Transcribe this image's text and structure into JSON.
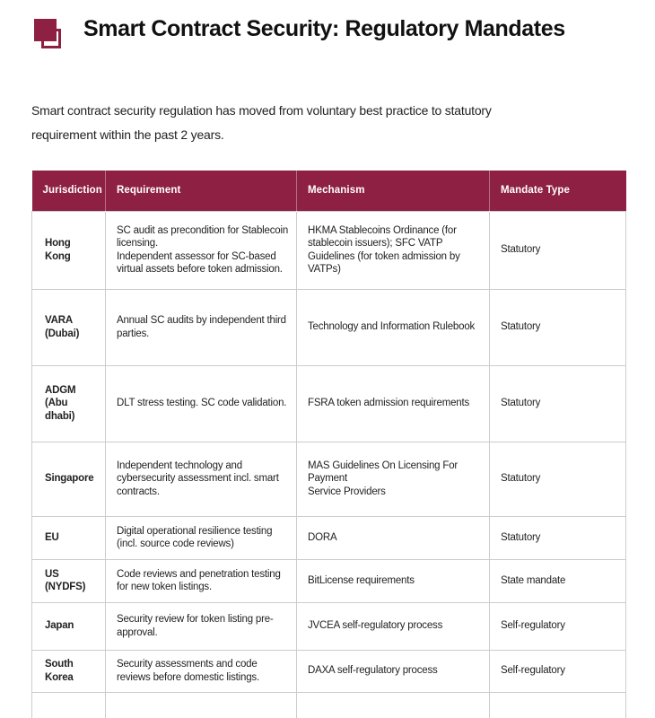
{
  "page": {
    "title": "Smart Contract Security: Regulatory Mandates",
    "intro": "Smart contract security regulation has moved from voluntary best practice to statutory requirement within the past 2 years."
  },
  "logo": {
    "icon": "overlapping-squares-icon",
    "color": "#8e2143"
  },
  "colors": {
    "brand_maroon": "#8e2143",
    "table_border_gray": "#cccccc",
    "header_text": "#ffffff",
    "body_text": "#1f1f1f"
  },
  "table": {
    "headers": [
      "Jurisdiction",
      "Requirement",
      "Mechanism",
      "Mandate Type"
    ],
    "rows": [
      {
        "jurisdiction": "Hong Kong",
        "requirement": "SC audit as precondition for Stablecoin licensing.\nIndependent assessor for SC-based virtual assets before token admission.",
        "mechanism": "HKMA Stablecoins Ordinance (for stablecoin issuers); SFC VATP Guidelines (for token admission by VATPs)",
        "mandate_type": "Statutory"
      },
      {
        "jurisdiction": "VARA (Dubai)",
        "requirement": "Annual SC audits by independent third parties.",
        "mechanism": "Technology and Information Rulebook",
        "mandate_type": "Statutory"
      },
      {
        "jurisdiction": "ADGM (Abu dhabi)",
        "requirement": "DLT stress testing. SC code validation.",
        "mechanism": "FSRA token admission requirements",
        "mandate_type": "Statutory"
      },
      {
        "jurisdiction": "Singapore",
        "requirement": "Independent technology and cybersecurity assessment incl. smart contracts.",
        "mechanism": "MAS Guidelines On Licensing For Payment\nService Providers",
        "mandate_type": "Statutory"
      },
      {
        "jurisdiction": "EU",
        "requirement": "Digital operational resilience testing (incl. source code reviews)",
        "mechanism": "DORA",
        "mandate_type": "Statutory"
      },
      {
        "jurisdiction": "US (NYDFS)",
        "requirement": "Code reviews and penetration testing for new token listings.",
        "mechanism": "BitLicense requirements",
        "mandate_type": "State mandate"
      },
      {
        "jurisdiction": "Japan",
        "requirement": "Security review for token listing pre-approval.",
        "mechanism": "JVCEA self-regulatory process",
        "mandate_type": "Self-regulatory"
      },
      {
        "jurisdiction": "South Korea",
        "requirement": "Security assessments and code reviews before domestic listings.",
        "mechanism": "DAXA self-regulatory process",
        "mandate_type": "Self-regulatory"
      }
    ]
  }
}
